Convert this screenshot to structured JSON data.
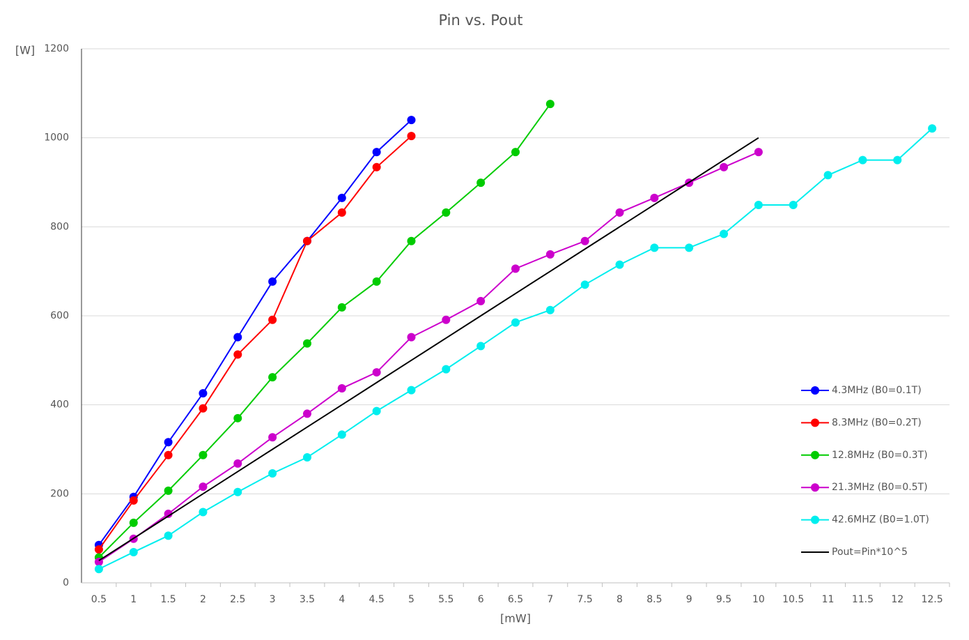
{
  "chart_data": {
    "type": "line",
    "title": "Pin vs. Pout",
    "ylabel": "[W]",
    "xlabel": "[mW]",
    "categories": [
      "0.5",
      "1",
      "1.5",
      "2",
      "2.5",
      "3",
      "3.5",
      "4",
      "4.5",
      "5",
      "5.5",
      "6",
      "6.5",
      "7",
      "7.5",
      "8",
      "8.5",
      "9",
      "9.5",
      "10",
      "10.5",
      "11",
      "11.5",
      "12",
      "12.5"
    ],
    "ylim": [
      0,
      1200
    ],
    "yticks": [
      0,
      200,
      400,
      600,
      800,
      1000,
      1200
    ],
    "grid": true,
    "legend": "right",
    "series": [
      {
        "name": "4.3MHz (B0=0.1T)",
        "color": "#0000ff",
        "marker": true,
        "values": [
          85,
          193,
          316,
          426,
          552,
          677,
          768,
          865,
          968,
          1040,
          null,
          null,
          null,
          null,
          null,
          null,
          null,
          null,
          null,
          null,
          null,
          null,
          null,
          null,
          null
        ]
      },
      {
        "name": "8.3MHz (B0=0.2T)",
        "color": "#ff0000",
        "marker": true,
        "values": [
          75,
          185,
          287,
          392,
          513,
          591,
          768,
          832,
          934,
          1004,
          null,
          null,
          null,
          null,
          null,
          null,
          null,
          null,
          null,
          null,
          null,
          null,
          null,
          null,
          null
        ]
      },
      {
        "name": "12.8MHz (B0=0.3T)",
        "color": "#00cc00",
        "marker": true,
        "values": [
          57,
          135,
          207,
          287,
          370,
          462,
          538,
          619,
          677,
          768,
          832,
          899,
          968,
          1076,
          null,
          null,
          null,
          null,
          null,
          null,
          null,
          null,
          null,
          null,
          null
        ]
      },
      {
        "name": "21.3MHz (B0=0.5T)",
        "color": "#cc00cc",
        "marker": true,
        "values": [
          47,
          99,
          155,
          216,
          268,
          327,
          380,
          437,
          473,
          552,
          591,
          633,
          706,
          738,
          768,
          832,
          865,
          899,
          934,
          968,
          null,
          null,
          null,
          null,
          null
        ]
      },
      {
        "name": "42.6MHZ (B0=1.0T)",
        "color": "#00eeee",
        "marker": true,
        "values": [
          31,
          69,
          106,
          159,
          204,
          246,
          282,
          333,
          386,
          433,
          480,
          532,
          585,
          613,
          670,
          715,
          753,
          753,
          784,
          849,
          849,
          916,
          950,
          950,
          1021
        ]
      },
      {
        "name": "Pout=Pin*10^5",
        "color": "#000000",
        "marker": false,
        "values": [
          50,
          100,
          150,
          200,
          250,
          300,
          350,
          400,
          450,
          500,
          550,
          600,
          650,
          700,
          750,
          800,
          850,
          900,
          950,
          1000,
          null,
          null,
          null,
          null,
          null
        ]
      }
    ]
  }
}
